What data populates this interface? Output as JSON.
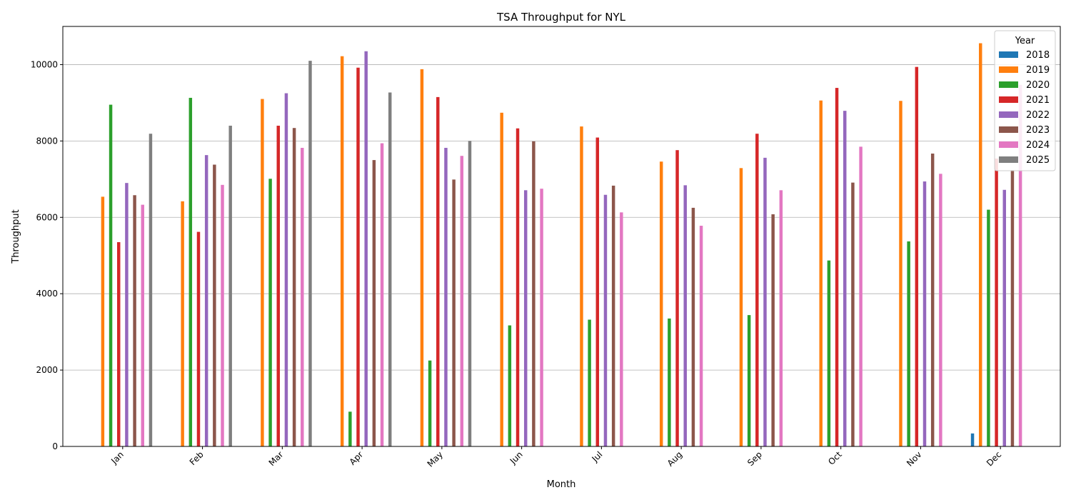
{
  "chart_data": {
    "type": "bar",
    "title": "TSA Throughput for NYL",
    "xlabel": "Month",
    "ylabel": "Throughput",
    "ylim": [
      0,
      11000
    ],
    "yticks": [
      0,
      2000,
      4000,
      6000,
      8000,
      10000
    ],
    "grid": "y",
    "legend": {
      "title": "Year",
      "placement": "top-right"
    },
    "categories": [
      "Jan",
      "Feb",
      "Mar",
      "Apr",
      "May",
      "Jun",
      "Jul",
      "Aug",
      "Sep",
      "Oct",
      "Nov",
      "Dec"
    ],
    "series": [
      {
        "name": "2018",
        "color": "#1f77b4",
        "values": [
          null,
          null,
          null,
          null,
          null,
          null,
          null,
          null,
          null,
          null,
          null,
          340
        ]
      },
      {
        "name": "2019",
        "color": "#ff7f0e",
        "values": [
          6540,
          6420,
          9100,
          10220,
          9880,
          8740,
          8380,
          7460,
          7290,
          9060,
          9050,
          10560
        ]
      },
      {
        "name": "2020",
        "color": "#2ca02c",
        "values": [
          8950,
          9130,
          7010,
          910,
          2250,
          3170,
          3320,
          3350,
          3440,
          4870,
          5370,
          6200
        ]
      },
      {
        "name": "2021",
        "color": "#d62728",
        "values": [
          5350,
          5620,
          8400,
          9920,
          9150,
          8330,
          8090,
          7760,
          8190,
          9390,
          9940,
          7540
        ]
      },
      {
        "name": "2022",
        "color": "#9467bd",
        "values": [
          6900,
          7630,
          9250,
          10350,
          7820,
          6710,
          6590,
          6840,
          7560,
          8790,
          6940,
          6720
        ]
      },
      {
        "name": "2023",
        "color": "#8c564b",
        "values": [
          6580,
          7380,
          8340,
          7500,
          6990,
          7990,
          6830,
          6250,
          6080,
          6910,
          7670,
          7240
        ]
      },
      {
        "name": "2024",
        "color": "#e377c2",
        "values": [
          6330,
          6850,
          7820,
          7940,
          7610,
          6750,
          6130,
          5780,
          6710,
          7850,
          7140,
          9470
        ]
      },
      {
        "name": "2025",
        "color": "#7f7f7f",
        "values": [
          8190,
          8400,
          10100,
          9270,
          8000,
          null,
          null,
          null,
          null,
          null,
          null,
          null
        ]
      }
    ]
  }
}
